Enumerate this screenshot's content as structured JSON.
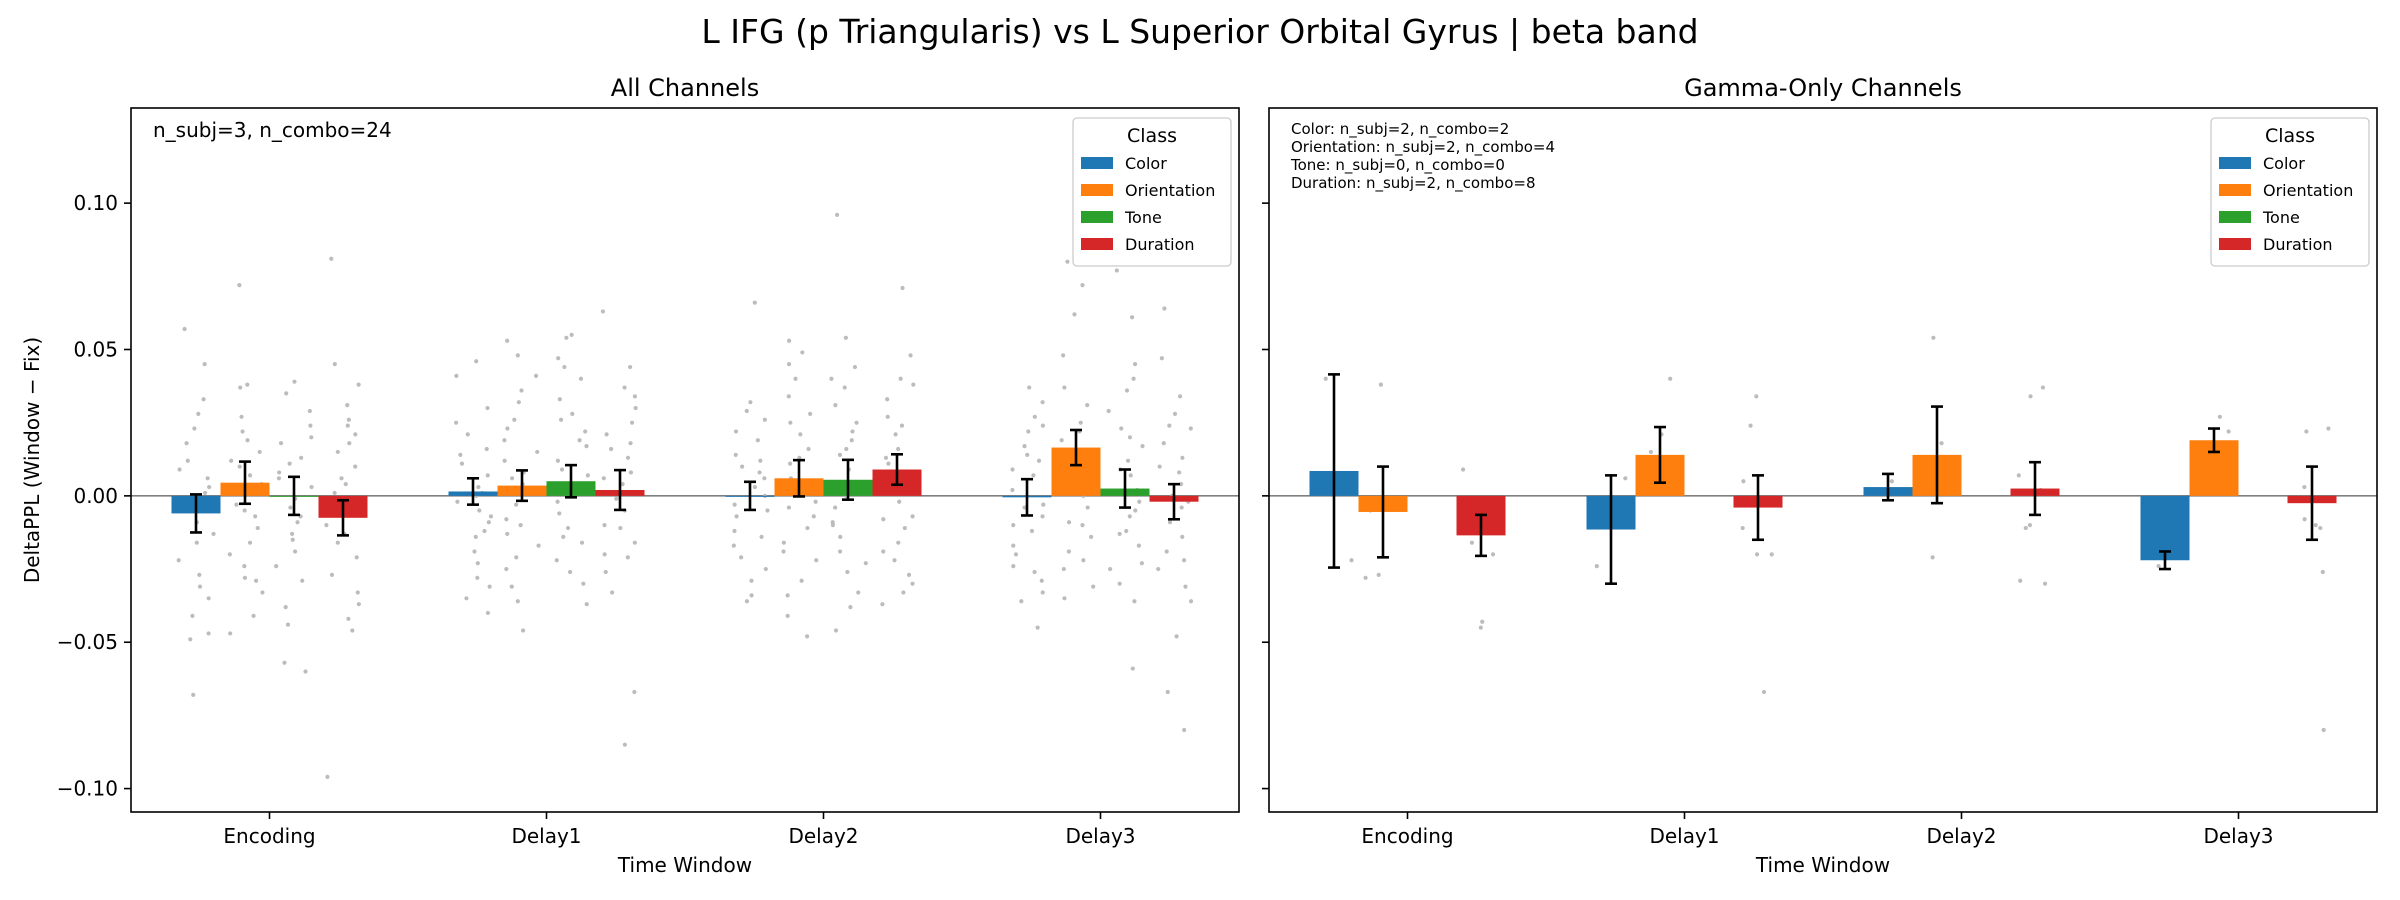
{
  "figure": {
    "title": "L IFG (p Triangularis) vs L Superior Orbital Gyrus  |  beta band"
  },
  "chart_data": [
    {
      "type": "bar",
      "title": "All Channels",
      "xlabel": "Time Window",
      "ylabel": "DeltaPPL (Window − Fix)",
      "ylim": [
        -0.108,
        0.1325
      ],
      "yticks": [
        -0.1,
        -0.05,
        0.0,
        0.05,
        0.1
      ],
      "ytick_labels": [
        "−0.10",
        "−0.05",
        "0.00",
        "0.05",
        "0.10"
      ],
      "categories": [
        "Encoding",
        "Delay1",
        "Delay2",
        "Delay3"
      ],
      "annotation": [
        "n_subj=3, n_combo=24"
      ],
      "legend": {
        "title": "Class",
        "placement": "top-right"
      },
      "zero_line": true,
      "colors": {
        "Color": "#1f77b4",
        "Orientation": "#ff7f0e",
        "Tone": "#2ca02c",
        "Duration": "#d62728",
        "points": "#b5b5b5",
        "errorbar": "#000000"
      },
      "series": [
        {
          "name": "Color",
          "values": [
            -0.006,
            0.0015,
            0.0,
            -0.0005
          ],
          "err": [
            0.0065,
            0.0045,
            0.0048,
            0.0062
          ]
        },
        {
          "name": "Orientation",
          "values": [
            0.0045,
            0.0035,
            0.006,
            0.0165
          ],
          "err": [
            0.0072,
            0.0052,
            0.0062,
            0.006
          ]
        },
        {
          "name": "Tone",
          "values": [
            0.0,
            0.005,
            0.0055,
            0.0025
          ],
          "err": [
            0.0065,
            0.0055,
            0.0068,
            0.0065
          ]
        },
        {
          "name": "Duration",
          "values": [
            -0.0075,
            0.002,
            0.009,
            -0.002
          ],
          "err": [
            0.006,
            0.0068,
            0.0052,
            0.006
          ]
        }
      ],
      "points": [
        [
          [
            0.057,
            0.045,
            0.028,
            0.023,
            0.012,
            0.006,
            0.001,
            -0.004,
            -0.009,
            -0.016,
            -0.022,
            -0.027,
            -0.031,
            -0.041,
            -0.047,
            -0.049,
            -0.068,
            0.018,
            -0.013,
            0.033,
            0.003,
            -0.035,
            0.009,
            -0.002
          ],
          [
            0.072,
            0.038,
            0.037,
            0.027,
            0.019,
            0.012,
            0.007,
            0.004,
            0.001,
            -0.003,
            -0.007,
            -0.011,
            -0.016,
            -0.02,
            -0.028,
            -0.029,
            -0.041,
            -0.047,
            0.022,
            -0.033,
            0.015,
            -0.024,
            0.01,
            -0.005
          ],
          [
            0.039,
            0.035,
            0.029,
            0.024,
            0.018,
            0.013,
            0.006,
            0.003,
            -0.001,
            -0.004,
            -0.009,
            -0.013,
            -0.015,
            -0.024,
            -0.029,
            -0.044,
            -0.057,
            -0.06,
            0.02,
            -0.038,
            0.008,
            -0.019,
            0.011,
            -0.007
          ],
          [
            0.081,
            0.045,
            0.038,
            0.031,
            0.026,
            0.021,
            0.015,
            0.01,
            0.006,
            0.001,
            -0.004,
            -0.01,
            -0.016,
            -0.021,
            -0.027,
            -0.033,
            -0.042,
            -0.046,
            -0.096,
            0.018,
            -0.037,
            0.004,
            -0.013,
            0.024
          ]
        ],
        [
          [
            0.046,
            0.041,
            0.021,
            0.016,
            0.011,
            0.007,
            0.003,
            0.001,
            -0.002,
            -0.005,
            -0.009,
            -0.014,
            -0.019,
            -0.023,
            -0.028,
            -0.031,
            -0.04,
            0.025,
            -0.012,
            0.03,
            -0.035,
            0.014,
            -0.007,
            0.0
          ],
          [
            0.053,
            0.048,
            0.041,
            0.032,
            0.026,
            0.019,
            0.012,
            0.008,
            0.004,
            0.001,
            -0.003,
            -0.008,
            -0.013,
            -0.017,
            -0.025,
            -0.031,
            -0.046,
            0.036,
            -0.021,
            0.023,
            -0.036,
            0.015,
            -0.01,
            0.006
          ],
          [
            0.055,
            0.054,
            0.047,
            0.04,
            0.033,
            0.028,
            0.022,
            0.017,
            0.012,
            0.007,
            0.003,
            -0.002,
            -0.006,
            -0.011,
            -0.016,
            -0.022,
            -0.03,
            -0.037,
            0.044,
            -0.026,
            0.026,
            -0.014,
            0.009,
            0.019
          ],
          [
            0.063,
            0.044,
            0.037,
            0.03,
            0.025,
            0.018,
            0.013,
            0.008,
            0.004,
            -0.001,
            -0.005,
            -0.011,
            -0.016,
            -0.021,
            -0.026,
            -0.033,
            -0.067,
            -0.085,
            0.034,
            -0.02,
            0.021,
            -0.01,
            0.006,
            0.016
          ]
        ],
        [
          [
            0.066,
            0.032,
            0.026,
            0.019,
            0.014,
            0.01,
            0.006,
            0.003,
            0.0,
            -0.003,
            -0.007,
            -0.012,
            -0.017,
            -0.021,
            -0.029,
            -0.034,
            -0.036,
            0.029,
            -0.025,
            0.022,
            -0.014,
            0.008,
            -0.005,
            0.012
          ],
          [
            0.053,
            0.049,
            0.04,
            0.034,
            0.028,
            0.021,
            0.016,
            0.011,
            0.006,
            0.002,
            -0.002,
            -0.007,
            -0.011,
            -0.016,
            -0.022,
            -0.029,
            -0.041,
            -0.048,
            0.045,
            -0.034,
            0.025,
            -0.019,
            0.013,
            -0.004
          ],
          [
            0.096,
            0.054,
            0.044,
            0.037,
            0.031,
            0.025,
            0.019,
            0.014,
            0.009,
            0.004,
            0.0,
            -0.004,
            -0.009,
            -0.014,
            -0.019,
            -0.026,
            -0.033,
            -0.046,
            0.04,
            -0.038,
            0.022,
            -0.023,
            0.016,
            -0.01
          ],
          [
            0.071,
            0.048,
            0.04,
            0.033,
            0.027,
            0.021,
            0.016,
            0.011,
            0.006,
            0.002,
            -0.002,
            -0.007,
            -0.011,
            -0.016,
            -0.022,
            -0.027,
            -0.033,
            -0.037,
            0.038,
            -0.03,
            0.024,
            -0.019,
            0.013,
            -0.008
          ]
        ],
        [
          [
            0.037,
            0.032,
            0.027,
            0.022,
            0.017,
            0.012,
            0.007,
            0.002,
            -0.003,
            -0.007,
            -0.012,
            -0.017,
            -0.02,
            -0.024,
            -0.026,
            -0.029,
            -0.033,
            -0.036,
            -0.045,
            0.024,
            -0.01,
            0.014,
            -0.004,
            0.009
          ],
          [
            0.08,
            0.072,
            0.062,
            0.037,
            0.031,
            0.025,
            0.019,
            0.014,
            0.009,
            0.004,
            0.0,
            -0.004,
            -0.009,
            -0.014,
            -0.019,
            -0.025,
            -0.031,
            -0.035,
            0.048,
            -0.022,
            0.022,
            -0.01,
            0.012,
            0.006
          ],
          [
            0.077,
            0.061,
            0.045,
            0.036,
            0.029,
            0.023,
            0.017,
            0.012,
            0.007,
            0.002,
            -0.002,
            -0.007,
            -0.012,
            -0.017,
            -0.023,
            -0.03,
            -0.036,
            -0.059,
            0.04,
            -0.025,
            0.02,
            -0.013,
            0.009,
            -0.005
          ],
          [
            0.064,
            0.047,
            0.034,
            0.028,
            0.023,
            0.018,
            0.013,
            0.008,
            0.004,
            0.0,
            -0.004,
            -0.009,
            -0.014,
            -0.019,
            -0.025,
            -0.031,
            -0.036,
            -0.048,
            -0.067,
            -0.08,
            0.024,
            -0.022,
            0.01,
            -0.002
          ]
        ]
      ]
    },
    {
      "type": "bar",
      "title": "Gamma-Only Channels",
      "xlabel": "Time Window",
      "ylabel": "",
      "ylim": [
        -0.108,
        0.1325
      ],
      "yticks": [
        -0.1,
        -0.05,
        0.0,
        0.05,
        0.1
      ],
      "ytick_labels": [],
      "categories": [
        "Encoding",
        "Delay1",
        "Delay2",
        "Delay3"
      ],
      "annotation": [
        "Color: n_subj=2, n_combo=2",
        "Orientation: n_subj=2, n_combo=4",
        "Tone: n_subj=0, n_combo=0",
        "Duration: n_subj=2, n_combo=8"
      ],
      "legend": {
        "title": "Class",
        "placement": "top-right"
      },
      "zero_line": true,
      "colors": {
        "Color": "#1f77b4",
        "Orientation": "#ff7f0e",
        "Tone": "#2ca02c",
        "Duration": "#d62728",
        "points": "#b5b5b5",
        "errorbar": "#000000"
      },
      "series": [
        {
          "name": "Color",
          "values": [
            0.0085,
            -0.0115,
            0.003,
            -0.022
          ],
          "err": [
            0.033,
            0.0185,
            0.0045,
            0.003
          ]
        },
        {
          "name": "Orientation",
          "values": [
            -0.0055,
            0.014,
            0.014,
            0.019
          ],
          "err": [
            0.0155,
            0.0095,
            0.0165,
            0.004
          ]
        },
        {
          "name": "Tone",
          "values": [
            null,
            null,
            null,
            null
          ],
          "err": [
            null,
            null,
            null,
            null
          ]
        },
        {
          "name": "Duration",
          "values": [
            -0.0135,
            -0.004,
            0.0025,
            -0.0025
          ],
          "err": [
            0.007,
            0.011,
            0.009,
            0.0125
          ]
        }
      ],
      "points": [
        [
          [
            0.04,
            -0.022
          ],
          [
            0.038,
            -0.028,
            -0.005,
            -0.027
          ],
          [],
          [
            0.009,
            -0.001,
            -0.043,
            -0.045,
            -0.016,
            -0.009,
            -0.002,
            -0.02
          ]
        ],
        [
          [
            0.006,
            -0.024
          ],
          [
            0.04,
            0.021,
            0.015,
            0.006
          ],
          [],
          [
            0.034,
            0.024,
            0.005,
            -0.02,
            -0.02,
            -0.067,
            -0.003,
            -0.011
          ]
        ],
        [
          [
            0.005,
            0.001
          ],
          [
            0.054,
            0.018,
            0.003,
            -0.021
          ],
          [],
          [
            0.037,
            0.034,
            0.007,
            -0.01,
            -0.011,
            -0.03,
            -0.029,
            0.002
          ]
        ],
        [
          [
            -0.021,
            -0.024
          ],
          [
            0.027,
            0.022,
            0.017,
            0.015
          ],
          [],
          [
            0.023,
            0.022,
            0.003,
            -0.008,
            -0.011,
            -0.026,
            -0.08,
            -0.01
          ]
        ]
      ]
    }
  ]
}
